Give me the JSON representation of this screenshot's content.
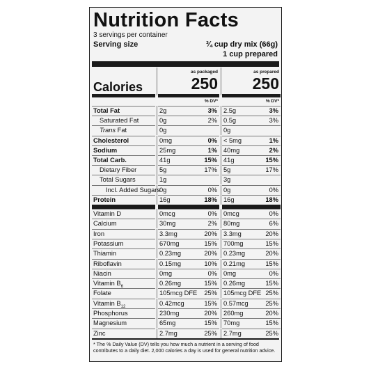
{
  "header": {
    "title": "Nutrition Facts",
    "servings": "3 servings per container",
    "serving_size_label": "Serving size",
    "serving_size_1": "¾ cup dry mix (66g)",
    "serving_size_2": "1 cup prepared"
  },
  "columns": {
    "packaged": "as packaged",
    "prepared": "as prepared",
    "dv": "% DV*"
  },
  "calories": {
    "label": "Calories",
    "packaged": "250",
    "prepared": "250"
  },
  "nutrients": [
    {
      "name": "Total Fat",
      "bold": true,
      "indent": 0,
      "packaged": "2g",
      "packaged_dv": "3%",
      "prepared": "2.5g",
      "prepared_dv": "3%"
    },
    {
      "name": "Saturated Fat",
      "bold": false,
      "indent": 1,
      "packaged": "0g",
      "packaged_dv": "2%",
      "prepared": "0.5g",
      "prepared_dv": "3%"
    },
    {
      "italic": "Trans",
      "name": "Fat",
      "bold": false,
      "indent": 1,
      "packaged": "0g",
      "packaged_dv": null,
      "prepared": "0g",
      "prepared_dv": null
    },
    {
      "name": "Cholesterol",
      "bold": true,
      "indent": 0,
      "packaged": "0mg",
      "packaged_dv": "0%",
      "prepared": "< 5mg",
      "prepared_dv": "1%"
    },
    {
      "name": "Sodium",
      "bold": true,
      "indent": 0,
      "packaged": "25mg",
      "packaged_dv": "1%",
      "prepared": "40mg",
      "prepared_dv": "2%"
    },
    {
      "name": "Total Carb.",
      "bold": true,
      "indent": 0,
      "packaged": "41g",
      "packaged_dv": "15%",
      "prepared": "41g",
      "prepared_dv": "15%"
    },
    {
      "name": "Dietary Fiber",
      "bold": false,
      "indent": 1,
      "packaged": "5g",
      "packaged_dv": "17%",
      "prepared": "5g",
      "prepared_dv": "17%"
    },
    {
      "name": "Total Sugars",
      "bold": false,
      "indent": 1,
      "packaged": "1g",
      "packaged_dv": null,
      "prepared": "3g",
      "prepared_dv": null
    },
    {
      "name": "Incl. Added Sugars",
      "bold": false,
      "indent": 2,
      "packaged": "0g",
      "packaged_dv": "0%",
      "prepared": "0g",
      "prepared_dv": "0%"
    },
    {
      "name": "Protein",
      "bold": true,
      "indent": 0,
      "packaged": "16g",
      "packaged_dv": "18%",
      "prepared": "16g",
      "prepared_dv": "18%"
    }
  ],
  "vitamins": [
    {
      "name": "Vitamin D",
      "packaged": "0mcg",
      "packaged_dv": "0%",
      "prepared": "0mcg",
      "prepared_dv": "0%"
    },
    {
      "name": "Calcium",
      "packaged": "30mg",
      "packaged_dv": "2%",
      "prepared": "80mg",
      "prepared_dv": "6%"
    },
    {
      "name": "Iron",
      "packaged": "3.3mg",
      "packaged_dv": "20%",
      "prepared": "3.3mg",
      "prepared_dv": "20%"
    },
    {
      "name": "Potassium",
      "packaged": "670mg",
      "packaged_dv": "15%",
      "prepared": "700mg",
      "prepared_dv": "15%"
    },
    {
      "name": "Thiamin",
      "packaged": "0.23mg",
      "packaged_dv": "20%",
      "prepared": "0.23mg",
      "prepared_dv": "20%"
    },
    {
      "name": "Riboflavin",
      "packaged": "0.15mg",
      "packaged_dv": "10%",
      "prepared": "0.21mg",
      "prepared_dv": "15%"
    },
    {
      "name": "Niacin",
      "packaged": "0mg",
      "packaged_dv": "0%",
      "prepared": "0mg",
      "prepared_dv": "0%"
    },
    {
      "name": "Vitamin B",
      "sub": "6",
      "packaged": "0.26mg",
      "packaged_dv": "15%",
      "prepared": "0.26mg",
      "prepared_dv": "15%"
    },
    {
      "name": "Folate",
      "packaged": "105mcg DFE",
      "packaged_dv": "25%",
      "prepared": "105mcg DFE",
      "prepared_dv": "25%"
    },
    {
      "name": "Vitamin B",
      "sub": "12",
      "packaged": "0.42mcg",
      "packaged_dv": "15%",
      "prepared": "0.57mcg",
      "prepared_dv": "25%"
    },
    {
      "name": "Phosphorus",
      "packaged": "230mg",
      "packaged_dv": "20%",
      "prepared": "260mg",
      "prepared_dv": "20%"
    },
    {
      "name": "Magnesium",
      "packaged": "65mg",
      "packaged_dv": "15%",
      "prepared": "70mg",
      "prepared_dv": "15%"
    },
    {
      "name": "Zinc",
      "packaged": "2.7mg",
      "packaged_dv": "25%",
      "prepared": "2.7mg",
      "prepared_dv": "25%"
    }
  ],
  "footnote": "* The % Daily Value (DV) tells you how much a nutrient in a serving of food contributes to a daily diet. 2,000 calories a day is used for general nutrition advice."
}
